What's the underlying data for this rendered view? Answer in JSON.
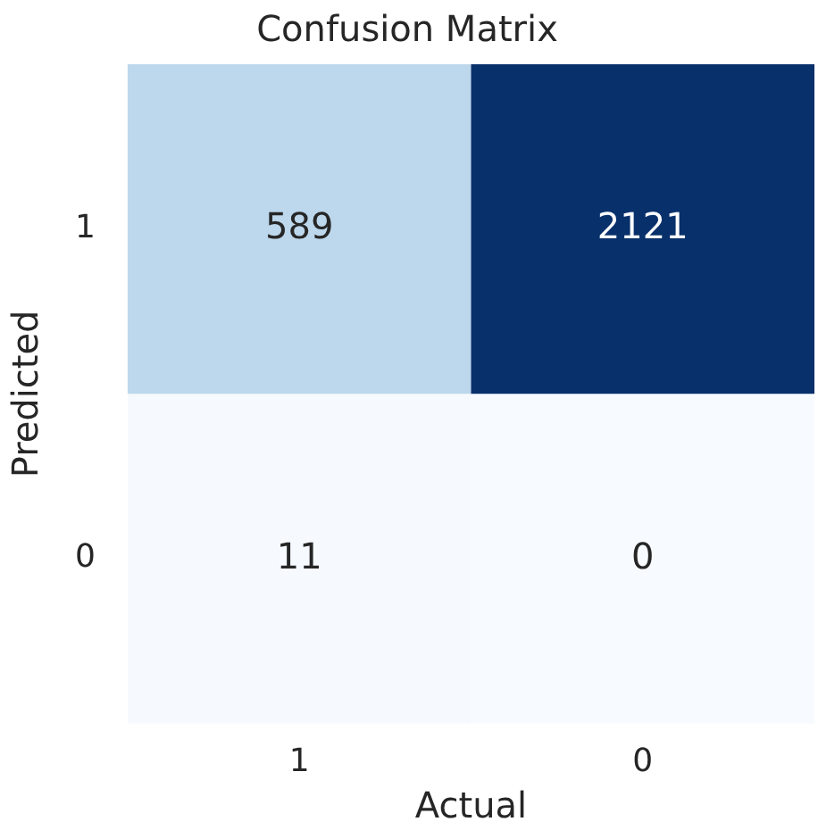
{
  "chart_data": {
    "type": "heatmap",
    "title": "Confusion Matrix",
    "xlabel": "Actual",
    "ylabel": "Predicted",
    "categories": [
      "1",
      "0"
    ],
    "y_categories": [
      "1",
      "0"
    ],
    "cells": [
      [
        589,
        2121
      ],
      [
        11,
        0
      ]
    ],
    "data_labels": true
  }
}
